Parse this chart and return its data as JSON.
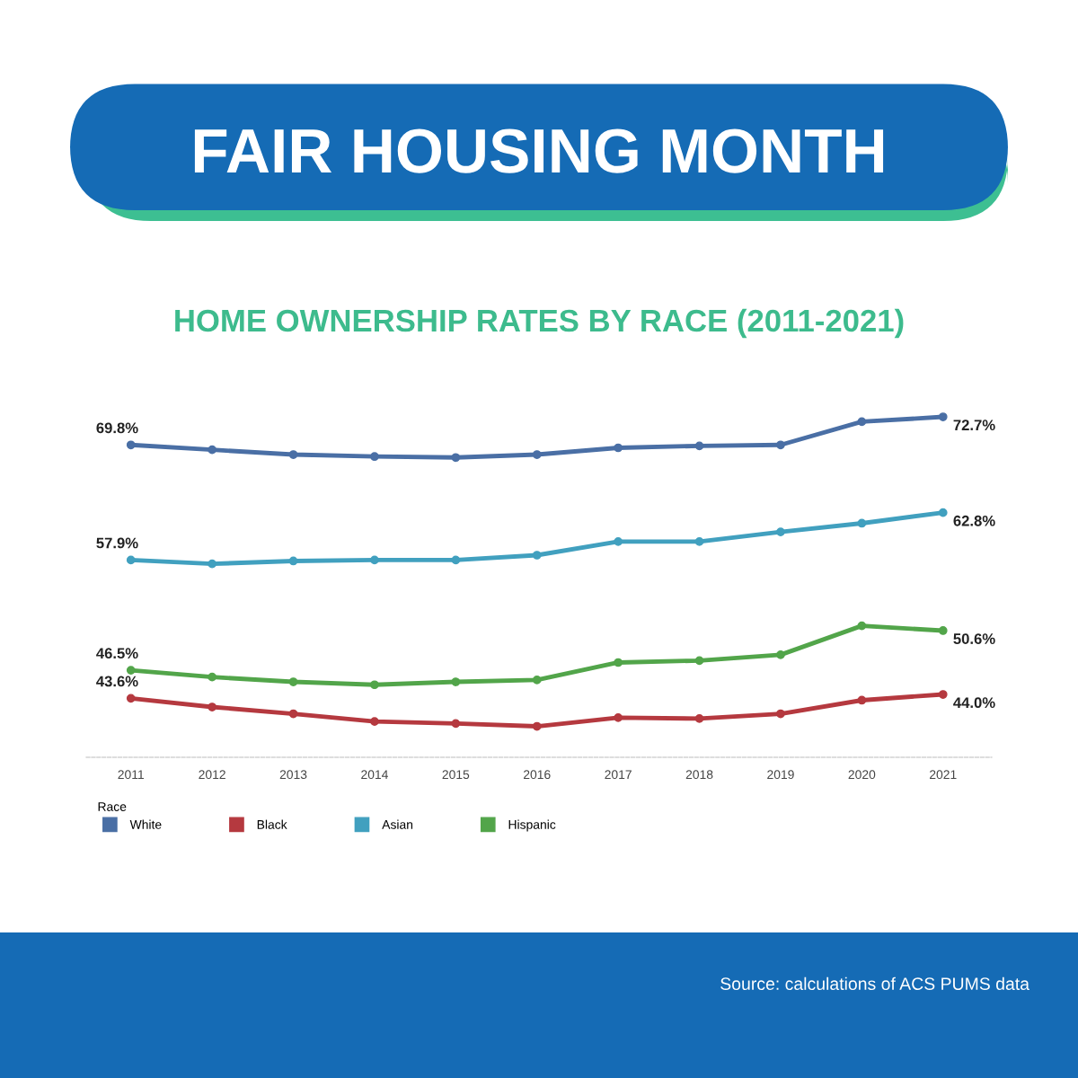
{
  "chart_data": {
    "type": "line",
    "title": "FAIR HOUSING MONTH",
    "subtitle": "HOME OWNERSHIP RATES BY RACE (2011-2021)",
    "categories": [
      "2011",
      "2012",
      "2013",
      "2014",
      "2015",
      "2016",
      "2017",
      "2018",
      "2019",
      "2020",
      "2021"
    ],
    "series": [
      {
        "name": "White",
        "color": "#4a6fa5",
        "values": [
          69.8,
          69.3,
          68.8,
          68.6,
          68.5,
          68.8,
          69.5,
          69.7,
          69.8,
          72.2,
          72.7
        ],
        "value_labels": [
          "69.8%",
          null,
          null,
          null,
          null,
          null,
          null,
          null,
          null,
          null,
          "72.7%"
        ]
      },
      {
        "name": "Black",
        "color": "#b5393f",
        "values": [
          43.6,
          42.7,
          42.0,
          41.2,
          41.0,
          40.7,
          41.6,
          41.5,
          42.0,
          43.4,
          44.0
        ],
        "value_labels": [
          "43.6%",
          null,
          null,
          null,
          null,
          null,
          null,
          null,
          null,
          null,
          "44.0%"
        ]
      },
      {
        "name": "Asian",
        "color": "#41a0bf",
        "values": [
          57.9,
          57.5,
          57.8,
          57.9,
          57.9,
          58.4,
          59.8,
          59.8,
          60.8,
          61.7,
          62.8
        ],
        "value_labels": [
          "57.9%",
          null,
          null,
          null,
          null,
          null,
          null,
          null,
          null,
          null,
          "62.8%"
        ]
      },
      {
        "name": "Hispanic",
        "color": "#52a54a",
        "values": [
          46.5,
          45.8,
          45.3,
          45.0,
          45.3,
          45.5,
          47.3,
          47.5,
          48.1,
          51.1,
          50.6
        ],
        "value_labels": [
          "46.5%",
          null,
          null,
          null,
          null,
          null,
          null,
          null,
          null,
          null,
          "50.6%"
        ]
      }
    ],
    "tick_labels": "x",
    "legend": "bottom left",
    "legend_title": "Race",
    "marker": "circle",
    "line_style": "solid",
    "grid": false,
    "annotations": [
      "Source: calculations of ACS PUMS data"
    ]
  }
}
